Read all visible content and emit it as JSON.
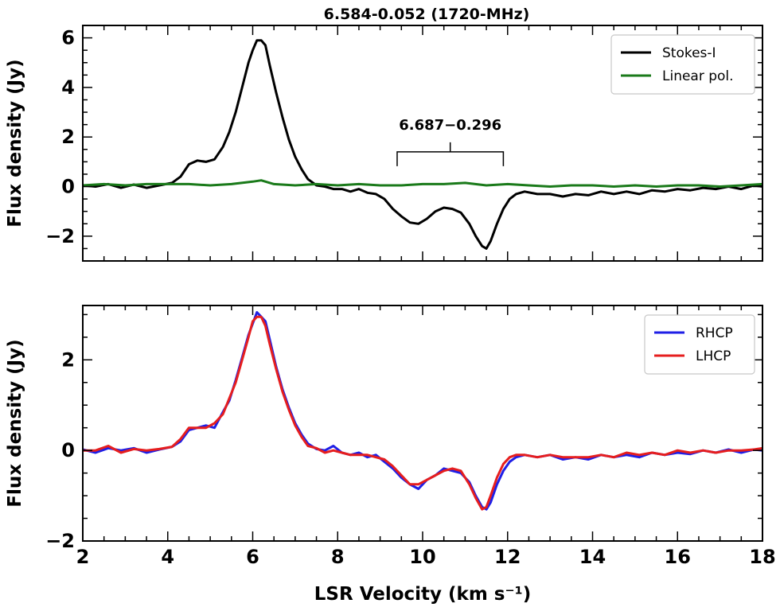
{
  "chart_data": [
    {
      "type": "line",
      "title": "6.584-0.052 (1720-MHz)",
      "xlabel": "",
      "ylabel": "Flux density (Jy)",
      "xlim": [
        2,
        18
      ],
      "ylim": [
        -3,
        6.5
      ],
      "yticks": [
        -2,
        0,
        2,
        4,
        6
      ],
      "ytick_labels": [
        "−2",
        "0",
        "2",
        "4",
        "6"
      ],
      "xticks": [
        2,
        4,
        6,
        8,
        10,
        12,
        14,
        16,
        18
      ],
      "legend_position": "top-right",
      "annotation": {
        "text": "6.687−0.296",
        "x_start": 9.4,
        "x_end": 11.9,
        "y": 1.4
      },
      "series": [
        {
          "name": "Stokes-I",
          "color": "#000000",
          "x": [
            2.0,
            2.3,
            2.6,
            2.9,
            3.2,
            3.5,
            3.8,
            4.1,
            4.3,
            4.5,
            4.7,
            4.9,
            5.1,
            5.3,
            5.45,
            5.6,
            5.75,
            5.9,
            6.0,
            6.1,
            6.2,
            6.3,
            6.4,
            6.55,
            6.7,
            6.85,
            7.0,
            7.15,
            7.3,
            7.5,
            7.7,
            7.9,
            8.1,
            8.3,
            8.5,
            8.7,
            8.9,
            9.1,
            9.3,
            9.5,
            9.7,
            9.9,
            10.1,
            10.3,
            10.5,
            10.7,
            10.9,
            11.1,
            11.25,
            11.4,
            11.5,
            11.6,
            11.75,
            11.9,
            12.05,
            12.2,
            12.4,
            12.7,
            13.0,
            13.3,
            13.6,
            13.9,
            14.2,
            14.5,
            14.8,
            15.1,
            15.4,
            15.7,
            16.0,
            16.3,
            16.6,
            16.9,
            17.2,
            17.5,
            17.8,
            18.0
          ],
          "y": [
            0.05,
            0.0,
            0.1,
            -0.05,
            0.08,
            -0.05,
            0.05,
            0.15,
            0.4,
            0.9,
            1.05,
            1.0,
            1.1,
            1.6,
            2.2,
            3.0,
            4.0,
            5.0,
            5.5,
            5.9,
            5.9,
            5.7,
            4.9,
            3.8,
            2.8,
            1.9,
            1.2,
            0.7,
            0.3,
            0.05,
            0.0,
            -0.1,
            -0.1,
            -0.2,
            -0.1,
            -0.25,
            -0.3,
            -0.5,
            -0.9,
            -1.2,
            -1.45,
            -1.5,
            -1.3,
            -1.0,
            -0.85,
            -0.9,
            -1.05,
            -1.5,
            -2.0,
            -2.4,
            -2.5,
            -2.2,
            -1.5,
            -0.9,
            -0.5,
            -0.3,
            -0.2,
            -0.3,
            -0.3,
            -0.4,
            -0.3,
            -0.35,
            -0.2,
            -0.3,
            -0.2,
            -0.3,
            -0.15,
            -0.2,
            -0.1,
            -0.15,
            -0.05,
            -0.1,
            0.0,
            -0.1,
            0.05,
            0.0
          ]
        },
        {
          "name": "Linear pol.",
          "color": "#1a7a1a",
          "x": [
            2.0,
            2.5,
            3.0,
            3.5,
            4.0,
            4.5,
            5.0,
            5.5,
            6.0,
            6.2,
            6.5,
            7.0,
            7.5,
            8.0,
            8.5,
            9.0,
            9.5,
            10.0,
            10.5,
            11.0,
            11.5,
            12.0,
            12.5,
            13.0,
            13.5,
            14.0,
            14.5,
            15.0,
            15.5,
            16.0,
            16.5,
            17.0,
            17.5,
            18.0
          ],
          "y": [
            0.05,
            0.1,
            0.05,
            0.1,
            0.1,
            0.1,
            0.05,
            0.1,
            0.2,
            0.25,
            0.1,
            0.05,
            0.1,
            0.05,
            0.1,
            0.05,
            0.05,
            0.1,
            0.1,
            0.15,
            0.05,
            0.1,
            0.05,
            0.0,
            0.05,
            0.05,
            0.0,
            0.05,
            0.0,
            0.05,
            0.05,
            0.0,
            0.05,
            0.1
          ]
        }
      ]
    },
    {
      "type": "line",
      "title": "",
      "xlabel": "LSR Velocity (km s⁻¹)",
      "ylabel": "Flux density (Jy)",
      "xlim": [
        2,
        18
      ],
      "ylim": [
        -2,
        3.2
      ],
      "yticks": [
        -2,
        0,
        2
      ],
      "ytick_labels": [
        "−2",
        "0",
        "2"
      ],
      "xticks": [
        2,
        4,
        6,
        8,
        10,
        12,
        14,
        16,
        18
      ],
      "xtick_labels": [
        "2",
        "4",
        "6",
        "8",
        "10",
        "12",
        "14",
        "16",
        "18"
      ],
      "legend_position": "top-right",
      "series": [
        {
          "name": "RHCP",
          "color": "#1f1fe6",
          "x": [
            2.0,
            2.3,
            2.6,
            2.9,
            3.2,
            3.5,
            3.8,
            4.1,
            4.3,
            4.5,
            4.7,
            4.9,
            5.1,
            5.3,
            5.45,
            5.6,
            5.75,
            5.9,
            6.0,
            6.1,
            6.2,
            6.3,
            6.4,
            6.55,
            6.7,
            6.85,
            7.0,
            7.15,
            7.3,
            7.5,
            7.7,
            7.9,
            8.1,
            8.3,
            8.5,
            8.7,
            8.9,
            9.1,
            9.3,
            9.5,
            9.7,
            9.9,
            10.1,
            10.3,
            10.5,
            10.7,
            10.9,
            11.1,
            11.25,
            11.4,
            11.5,
            11.6,
            11.75,
            11.9,
            12.05,
            12.2,
            12.4,
            12.7,
            13.0,
            13.3,
            13.6,
            13.9,
            14.2,
            14.5,
            14.8,
            15.1,
            15.4,
            15.7,
            16.0,
            16.3,
            16.6,
            16.9,
            17.2,
            17.5,
            17.8,
            18.0
          ],
          "y": [
            0.02,
            -0.05,
            0.05,
            0.0,
            0.05,
            -0.05,
            0.02,
            0.08,
            0.2,
            0.45,
            0.5,
            0.55,
            0.5,
            0.85,
            1.1,
            1.55,
            2.05,
            2.55,
            2.8,
            3.05,
            2.95,
            2.85,
            2.45,
            1.85,
            1.35,
            0.95,
            0.6,
            0.35,
            0.15,
            0.03,
            0.0,
            0.1,
            -0.05,
            -0.1,
            -0.05,
            -0.15,
            -0.1,
            -0.25,
            -0.4,
            -0.6,
            -0.75,
            -0.85,
            -0.65,
            -0.55,
            -0.4,
            -0.45,
            -0.5,
            -0.7,
            -1.0,
            -1.25,
            -1.3,
            -1.15,
            -0.75,
            -0.45,
            -0.25,
            -0.15,
            -0.1,
            -0.15,
            -0.1,
            -0.2,
            -0.15,
            -0.2,
            -0.1,
            -0.15,
            -0.1,
            -0.15,
            -0.05,
            -0.1,
            -0.05,
            -0.08,
            0.0,
            -0.05,
            0.02,
            -0.05,
            0.02,
            0.0
          ]
        },
        {
          "name": "LHCP",
          "color": "#e61e1e",
          "x": [
            2.0,
            2.3,
            2.6,
            2.9,
            3.2,
            3.5,
            3.8,
            4.1,
            4.3,
            4.5,
            4.7,
            4.9,
            5.1,
            5.3,
            5.45,
            5.6,
            5.75,
            5.9,
            6.0,
            6.1,
            6.2,
            6.3,
            6.4,
            6.55,
            6.7,
            6.85,
            7.0,
            7.15,
            7.3,
            7.5,
            7.7,
            7.9,
            8.1,
            8.3,
            8.5,
            8.7,
            8.9,
            9.1,
            9.3,
            9.5,
            9.7,
            9.9,
            10.1,
            10.3,
            10.5,
            10.7,
            10.9,
            11.1,
            11.25,
            11.4,
            11.5,
            11.6,
            11.75,
            11.9,
            12.05,
            12.2,
            12.4,
            12.7,
            13.0,
            13.3,
            13.6,
            13.9,
            14.2,
            14.5,
            14.8,
            15.1,
            15.4,
            15.7,
            16.0,
            16.3,
            16.6,
            16.9,
            17.2,
            17.5,
            17.8,
            18.0
          ],
          "y": [
            0.0,
            0.0,
            0.1,
            -0.05,
            0.03,
            0.0,
            0.03,
            0.08,
            0.25,
            0.5,
            0.5,
            0.5,
            0.6,
            0.8,
            1.15,
            1.5,
            2.0,
            2.5,
            2.85,
            2.95,
            2.95,
            2.75,
            2.35,
            1.8,
            1.3,
            0.9,
            0.55,
            0.3,
            0.1,
            0.05,
            -0.05,
            0.0,
            -0.05,
            -0.1,
            -0.1,
            -0.1,
            -0.15,
            -0.2,
            -0.35,
            -0.55,
            -0.75,
            -0.75,
            -0.65,
            -0.55,
            -0.45,
            -0.4,
            -0.45,
            -0.75,
            -1.05,
            -1.3,
            -1.25,
            -1.0,
            -0.6,
            -0.3,
            -0.15,
            -0.1,
            -0.1,
            -0.15,
            -0.1,
            -0.15,
            -0.15,
            -0.15,
            -0.1,
            -0.15,
            -0.05,
            -0.1,
            -0.05,
            -0.1,
            0.0,
            -0.05,
            0.0,
            -0.05,
            0.0,
            0.0,
            0.02,
            0.05
          ]
        }
      ]
    }
  ]
}
